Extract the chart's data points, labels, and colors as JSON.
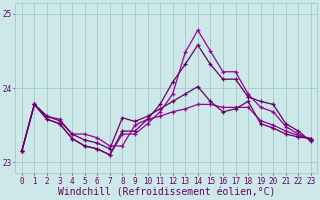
{
  "xlabel": "Windchill (Refroidissement éolien,°C)",
  "bg_color": "#cce8e8",
  "grid_color": "#aacccc",
  "line_color1": "#990099",
  "line_color2": "#660066",
  "x": [
    0,
    1,
    2,
    3,
    4,
    5,
    6,
    7,
    8,
    9,
    10,
    11,
    12,
    13,
    14,
    15,
    16,
    17,
    18,
    19,
    20,
    21,
    22,
    23
  ],
  "line1": [
    23.15,
    23.78,
    23.62,
    23.58,
    23.38,
    23.38,
    23.33,
    23.22,
    23.22,
    23.5,
    23.58,
    23.62,
    23.68,
    23.72,
    23.78,
    23.78,
    23.74,
    23.74,
    23.74,
    23.56,
    23.5,
    23.42,
    23.36,
    23.32
  ],
  "line2": [
    23.15,
    23.78,
    23.62,
    23.56,
    23.38,
    23.3,
    23.26,
    23.18,
    23.6,
    23.55,
    23.62,
    23.72,
    23.82,
    23.92,
    24.02,
    23.82,
    23.68,
    23.72,
    23.82,
    23.52,
    23.46,
    23.38,
    23.34,
    23.32
  ],
  "line3": [
    23.15,
    23.78,
    23.58,
    23.52,
    23.32,
    23.22,
    23.18,
    23.1,
    23.38,
    23.38,
    23.52,
    23.68,
    23.92,
    24.48,
    24.78,
    24.5,
    24.22,
    24.22,
    23.92,
    23.74,
    23.68,
    23.48,
    23.38,
    23.3
  ],
  "line4": [
    23.15,
    23.78,
    23.58,
    23.52,
    23.32,
    23.22,
    23.18,
    23.1,
    23.42,
    23.42,
    23.58,
    23.78,
    24.08,
    24.32,
    24.58,
    24.32,
    24.12,
    24.12,
    23.88,
    23.82,
    23.78,
    23.52,
    23.42,
    23.28
  ],
  "ylim": [
    22.85,
    25.15
  ],
  "yticks": [
    23,
    24,
    25
  ],
  "xtick_labels": [
    "0",
    "1",
    "2",
    "3",
    "4",
    "5",
    "6",
    "7",
    "8",
    "9",
    "10",
    "11",
    "12",
    "13",
    "14",
    "15",
    "16",
    "17",
    "18",
    "19",
    "20",
    "21",
    "22",
    "23"
  ],
  "font_color": "#660066",
  "tick_fontsize": 5.5,
  "xlabel_fontsize": 7.0
}
